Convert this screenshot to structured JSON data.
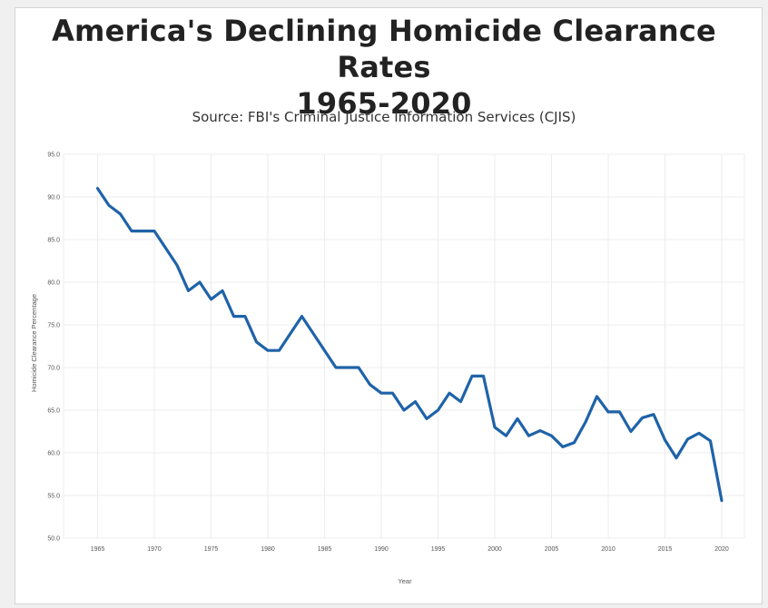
{
  "chart_data": {
    "type": "line",
    "title_line1": "America's Declining Homicide Clearance Rates",
    "title_line2": "1965-2020",
    "subtitle": "Source: FBI's Criminal Justice Information Services (CJIS)",
    "xlabel": "Year",
    "ylabel": "Homicide Clearance Percentage",
    "xlim": [
      1962,
      2022
    ],
    "ylim": [
      50,
      95
    ],
    "x_ticks": [
      1965,
      1970,
      1975,
      1980,
      1985,
      1990,
      1995,
      2000,
      2005,
      2010,
      2015,
      2020
    ],
    "y_ticks": [
      "50.0",
      "55.0",
      "60.0",
      "65.0",
      "70.0",
      "75.0",
      "80.0",
      "85.0",
      "90.0",
      "95.0"
    ],
    "grid": true,
    "series": [
      {
        "name": "Homicide Clearance Percentage",
        "color": "#1f63a8",
        "x": [
          1965,
          1966,
          1967,
          1968,
          1969,
          1970,
          1971,
          1972,
          1973,
          1974,
          1975,
          1976,
          1977,
          1978,
          1979,
          1980,
          1981,
          1982,
          1983,
          1984,
          1985,
          1986,
          1987,
          1988,
          1989,
          1990,
          1991,
          1992,
          1993,
          1994,
          1995,
          1996,
          1997,
          1998,
          1999,
          2000,
          2001,
          2002,
          2003,
          2004,
          2005,
          2006,
          2007,
          2008,
          2009,
          2010,
          2011,
          2012,
          2013,
          2014,
          2015,
          2016,
          2017,
          2018,
          2019,
          2020
        ],
        "values": [
          91,
          89,
          88,
          86,
          86,
          86,
          84,
          82,
          79,
          80,
          78,
          79,
          76,
          76,
          73,
          72,
          72,
          74,
          76,
          74,
          72,
          70,
          70,
          70,
          68,
          67,
          67,
          65,
          66,
          64,
          65,
          67,
          66,
          69,
          69,
          63,
          62,
          64,
          62,
          62.6,
          62,
          60.7,
          61.2,
          63.6,
          66.6,
          64.8,
          64.8,
          62.5,
          64.1,
          64.5,
          61.5,
          59.4,
          61.6,
          62.3,
          61.4,
          54.4
        ]
      }
    ]
  }
}
